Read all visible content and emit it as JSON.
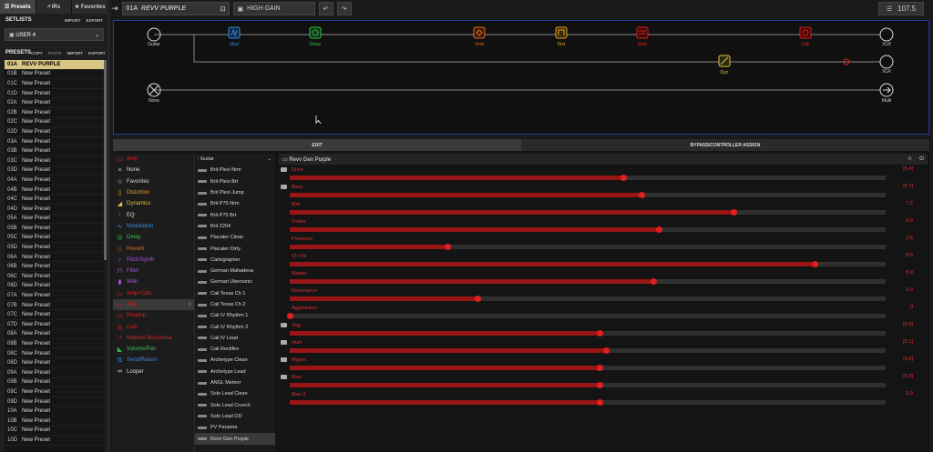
{
  "left_tabs": [
    "Presets",
    "IRs",
    "Favorites"
  ],
  "setlists": {
    "title": "SETLISTS",
    "import": "IMPORT",
    "export": "EXPORT",
    "current": "USER 4"
  },
  "presets": {
    "title": "PRESETS",
    "copy": "COPY",
    "paste": "PASTE",
    "import": "IMPORT",
    "export": "EXPORT",
    "items": [
      [
        "01A",
        "REVV PURPLE"
      ],
      [
        "01B",
        "New Preset"
      ],
      [
        "01C",
        "New Preset"
      ],
      [
        "01D",
        "New Preset"
      ],
      [
        "02A",
        "New Preset"
      ],
      [
        "02B",
        "New Preset"
      ],
      [
        "02C",
        "New Preset"
      ],
      [
        "02D",
        "New Preset"
      ],
      [
        "03A",
        "New Preset"
      ],
      [
        "03B",
        "New Preset"
      ],
      [
        "03C",
        "New Preset"
      ],
      [
        "03D",
        "New Preset"
      ],
      [
        "04A",
        "New Preset"
      ],
      [
        "04B",
        "New Preset"
      ],
      [
        "04C",
        "New Preset"
      ],
      [
        "04D",
        "New Preset"
      ],
      [
        "05A",
        "New Preset"
      ],
      [
        "05B",
        "New Preset"
      ],
      [
        "05C",
        "New Preset"
      ],
      [
        "05D",
        "New Preset"
      ],
      [
        "06A",
        "New Preset"
      ],
      [
        "06B",
        "New Preset"
      ],
      [
        "06C",
        "New Preset"
      ],
      [
        "06D",
        "New Preset"
      ],
      [
        "07A",
        "New Preset"
      ],
      [
        "07B",
        "New Preset"
      ],
      [
        "07C",
        "New Preset"
      ],
      [
        "07D",
        "New Preset"
      ],
      [
        "08A",
        "New Preset"
      ],
      [
        "08B",
        "New Preset"
      ],
      [
        "08C",
        "New Preset"
      ],
      [
        "08D",
        "New Preset"
      ],
      [
        "09A",
        "New Preset"
      ],
      [
        "09B",
        "New Preset"
      ],
      [
        "09C",
        "New Preset"
      ],
      [
        "09D",
        "New Preset"
      ],
      [
        "10A",
        "New Preset"
      ],
      [
        "10B",
        "New Preset"
      ],
      [
        "10C",
        "New Preset"
      ],
      [
        "10D",
        "New Preset"
      ]
    ]
  },
  "topbar": {
    "preset_id": "01A",
    "preset_name": "REVV PURPLE",
    "snapshot": "HIGH GAIN",
    "tempo": "107.5"
  },
  "signal": {
    "input": "Guitar",
    "input2": "None",
    "output1": "XLR",
    "output2": "XLR",
    "output3": "Multi",
    "blocks": [
      {
        "label": "Mod",
        "color": "#3a8ae0"
      },
      {
        "label": "Delay",
        "color": "#35c24a"
      },
      {
        "label": "Verb",
        "color": "#e06820"
      },
      {
        "label": "Dist",
        "color": "#e0a020"
      },
      {
        "label": "Amp",
        "color": "#e02020"
      },
      {
        "label": "Cab",
        "color": "#e02020"
      },
      {
        "label": "Dyn",
        "color": "#e0c040"
      }
    ]
  },
  "edit_tabs": [
    "EDIT",
    "BYPASS/CONTROLLER ASSIGN"
  ],
  "categories": {
    "header": "Amp",
    "items": [
      {
        "label": "None",
        "color": "#dddddd",
        "icon": "×"
      },
      {
        "label": "Favorites",
        "color": "#dddddd",
        "icon": "☆"
      },
      {
        "label": "Distortion",
        "color": "#e0a020",
        "icon": "▯"
      },
      {
        "label": "Dynamics",
        "color": "#e0c040",
        "icon": "◢"
      },
      {
        "label": "EQ",
        "color": "#e0e0e0",
        "icon": "⫶"
      },
      {
        "label": "Modulation",
        "color": "#3a8ae0",
        "icon": "∿"
      },
      {
        "label": "Delay",
        "color": "#35c24a",
        "icon": "◎"
      },
      {
        "label": "Reverb",
        "color": "#e06820",
        "icon": "◇"
      },
      {
        "label": "Pitch/Synth",
        "color": "#b050e0",
        "icon": "♪"
      },
      {
        "label": "Filter",
        "color": "#b050e0",
        "icon": "⊓"
      },
      {
        "label": "Wah",
        "color": "#b050e0",
        "icon": "▮"
      },
      {
        "label": "Amp+Cab",
        "color": "#e02020",
        "icon": "▭"
      },
      {
        "label": "Amp",
        "color": "#e02020",
        "icon": "▭"
      },
      {
        "label": "Preamp",
        "color": "#e02020",
        "icon": "▭"
      },
      {
        "label": "Cab",
        "color": "#e02020",
        "icon": "◎"
      },
      {
        "label": "Impulse Response",
        "color": "#e02020",
        "icon": "⩘"
      },
      {
        "label": "Volume/Pan",
        "color": "#35c24a",
        "icon": "◣"
      },
      {
        "label": "Send/Return",
        "color": "#3a8ae0",
        "icon": "⇅"
      },
      {
        "label": "Looper",
        "color": "#dddddd",
        "icon": "∞"
      }
    ]
  },
  "models": {
    "header": "Guitar",
    "items": [
      "Brit Plexi Nrm",
      "Brit Plexi Brt",
      "Brit Plexi Jump",
      "Brit P75 Nrm",
      "Brit P75 Brt",
      "Brit 2204",
      "Placater Clean",
      "Placater Dirty",
      "Cartographer",
      "German Mahadeva",
      "German Ubersonic",
      "Cali Texas Ch 1",
      "Cali Texas Ch 2",
      "Cali IV Rhythm 1",
      "Cali IV Rhythm 2",
      "Cali IV Lead",
      "Cali Rectifire",
      "Archetype Clean",
      "Archetype Lead",
      "ANGL Meteor",
      "Solo Lead Clean",
      "Solo Lead Crunch",
      "Solo Lead OD",
      "PV Panama",
      "Revv Gen Purple"
    ]
  },
  "params": {
    "block_name": "Revv Gen Purple",
    "items": [
      {
        "label": "Drive",
        "value": "[5.4]",
        "fraction": 0.56
      },
      {
        "label": "Bass",
        "value": "[5.7]",
        "fraction": 0.59
      },
      {
        "label": "Mid",
        "value": "7.2",
        "fraction": 0.745
      },
      {
        "label": "Treble",
        "value": "6.0",
        "fraction": 0.62
      },
      {
        "label": "Presence",
        "value": "2.6",
        "fraction": 0.265
      },
      {
        "label": "Ch Vol",
        "value": "8.5",
        "fraction": 0.88
      },
      {
        "label": "Master",
        "value": "5.9",
        "fraction": 0.61
      },
      {
        "label": "Resonance",
        "value": "3.0",
        "fraction": 0.315
      },
      {
        "label": "Aggression",
        "value": "0",
        "fraction": 0.0
      },
      {
        "label": "Sag",
        "value": "[5.0]",
        "fraction": 0.52
      },
      {
        "label": "Hum",
        "value": "[5.1]",
        "fraction": 0.53
      },
      {
        "label": "Ripple",
        "value": "[5.0]",
        "fraction": 0.52
      },
      {
        "label": "Bias",
        "value": "[5.0]",
        "fraction": 0.52
      },
      {
        "label": "Bias X",
        "value": "5.0",
        "fraction": 0.52
      }
    ]
  }
}
